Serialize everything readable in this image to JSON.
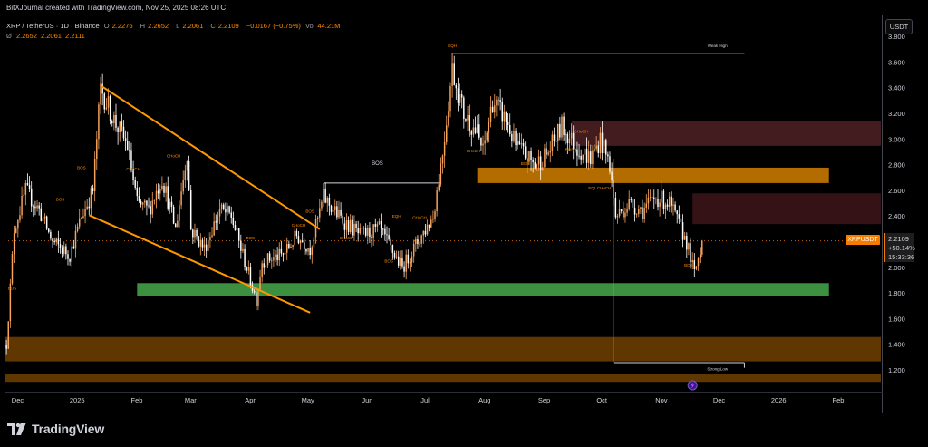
{
  "header": {
    "credit": "BitXJournal created with TradingView.com, Nov 25, 2025 08:26 UTC",
    "symbol": "XRP / TetherUS · 1D · Binance",
    "ohlc": [
      {
        "label": "O",
        "value": "2.2276"
      },
      {
        "label": "H",
        "value": "2.2652"
      },
      {
        "label": "L",
        "value": "2.2061"
      },
      {
        "label": "C",
        "value": "2.2109"
      }
    ],
    "change": "−0.0167 (−0.75%)",
    "volume_label": "Vol",
    "volume": "44.21M",
    "indicator_label": "Ø",
    "indicator_values": [
      "2.2652",
      "2.2061",
      "2.2111"
    ]
  },
  "currency_button": "USDT",
  "price_badge": {
    "ticker": "XRPUSDT",
    "price": "2.2109",
    "pct": "+50.14%",
    "countdown": "15:33:36"
  },
  "colors": {
    "up": "#f7a35c",
    "down": "#ffffff",
    "accent": "#ff8c00",
    "green_zone": "#43a047",
    "orange_zone": "#c77800",
    "brown_zone": "#6a3d00",
    "maroon_zone": "#4a1f24"
  },
  "footer": {
    "brand": "TradingView",
    "logo_icon": "tradingview-logo-icon"
  },
  "chart_data": {
    "type": "candlestick",
    "title": "XRP / TetherUS · 1D · Binance",
    "price_scale": {
      "min": 1.1,
      "max": 3.8,
      "ticks": [
        "1.200",
        "1.400",
        "1.600",
        "1.800",
        "2.000",
        "2.200",
        "2.400",
        "2.600",
        "2.800",
        "3.000",
        "3.200",
        "3.400",
        "3.600",
        "3.800"
      ]
    },
    "time_axis": [
      "Dec",
      "2025",
      "Feb",
      "Mar",
      "Apr",
      "May",
      "Jun",
      "Jul",
      "Aug",
      "Sep",
      "Oct",
      "Nov",
      "Dec",
      "2026",
      "Feb"
    ],
    "x_range": [
      "2024-11-27",
      "2026-02-26"
    ],
    "price_path": [
      [
        "2024-11-28",
        1.4
      ],
      [
        "2024-12-02",
        2.3
      ],
      [
        "2024-12-08",
        2.6
      ],
      [
        "2024-12-15",
        2.45
      ],
      [
        "2024-12-22",
        2.2
      ],
      [
        "2024-12-31",
        2.1
      ],
      [
        "2025-01-06",
        2.4
      ],
      [
        "2025-01-12",
        2.6
      ],
      [
        "2025-01-16",
        3.4
      ],
      [
        "2025-01-23",
        3.15
      ],
      [
        "2025-01-30",
        2.95
      ],
      [
        "2025-02-04",
        2.5
      ],
      [
        "2025-02-10",
        2.45
      ],
      [
        "2025-02-17",
        2.7
      ],
      [
        "2025-02-24",
        2.3
      ],
      [
        "2025-03-02",
        2.9
      ],
      [
        "2025-03-04",
        2.3
      ],
      [
        "2025-03-11",
        2.15
      ],
      [
        "2025-03-19",
        2.45
      ],
      [
        "2025-03-25",
        2.4
      ],
      [
        "2025-03-31",
        2.1
      ],
      [
        "2025-04-07",
        1.75
      ],
      [
        "2025-04-10",
        2.05
      ],
      [
        "2025-04-21",
        2.1
      ],
      [
        "2025-04-28",
        2.25
      ],
      [
        "2025-05-05",
        2.15
      ],
      [
        "2025-05-12",
        2.55
      ],
      [
        "2025-05-20",
        2.4
      ],
      [
        "2025-05-31",
        2.25
      ],
      [
        "2025-06-10",
        2.3
      ],
      [
        "2025-06-22",
        2.0
      ],
      [
        "2025-06-30",
        2.2
      ],
      [
        "2025-07-08",
        2.4
      ],
      [
        "2025-07-13",
        2.9
      ],
      [
        "2025-07-18",
        3.55
      ],
      [
        "2025-07-24",
        3.2
      ],
      [
        "2025-07-31",
        3.05
      ],
      [
        "2025-08-03",
        2.9
      ],
      [
        "2025-08-08",
        3.3
      ],
      [
        "2025-08-15",
        3.15
      ],
      [
        "2025-08-20",
        2.95
      ],
      [
        "2025-08-30",
        2.8
      ],
      [
        "2025-09-06",
        2.9
      ],
      [
        "2025-09-13",
        3.1
      ],
      [
        "2025-09-20",
        2.95
      ],
      [
        "2025-09-28",
        2.85
      ],
      [
        "2025-10-03",
        3.0
      ],
      [
        "2025-10-08",
        2.8
      ],
      [
        "2025-10-11",
        2.4
      ],
      [
        "2025-10-18",
        2.5
      ],
      [
        "2025-10-25",
        2.45
      ],
      [
        "2025-11-01",
        2.55
      ],
      [
        "2025-11-08",
        2.5
      ],
      [
        "2025-11-11",
        2.4
      ],
      [
        "2025-11-17",
        2.2
      ],
      [
        "2025-11-21",
        1.95
      ],
      [
        "2025-11-25",
        2.21
      ]
    ],
    "zones": [
      {
        "name": "demand-zone-green",
        "from": "2025-02-04",
        "to": "2026-01-30",
        "low": 1.78,
        "high": 1.88,
        "color": "#43a047"
      },
      {
        "name": "supply-zone-orange",
        "from": "2025-07-31",
        "to": "2026-01-30",
        "low": 2.66,
        "high": 2.78,
        "color": "#c77800"
      },
      {
        "name": "maroon-zone-upper",
        "from": "2025-09-18",
        "to": "2026-02-26",
        "low": 2.95,
        "high": 3.14,
        "color": "#4a1f24"
      },
      {
        "name": "maroon-zone-lower",
        "from": "2025-11-20",
        "to": "2026-02-26",
        "low": 2.34,
        "high": 2.58,
        "color": "#3a1418"
      },
      {
        "name": "orange-zone-bottom",
        "from": "2024-11-27",
        "to": "2026-02-26",
        "low": 1.27,
        "high": 1.46,
        "color": "#6a3d00"
      },
      {
        "name": "orange-zone-lowest",
        "from": "2024-11-27",
        "to": "2026-02-26",
        "low": 1.11,
        "high": 1.17,
        "color": "#6a3d00"
      }
    ],
    "trendlines": [
      {
        "name": "upper-trendline",
        "from": [
          "2025-01-16",
          3.42
        ],
        "to": [
          "2025-05-10",
          2.3
        ],
        "color": "#ff9800"
      },
      {
        "name": "lower-trendline",
        "from": [
          "2025-01-10",
          2.41
        ],
        "to": [
          "2025-05-05",
          1.65
        ],
        "color": "#ff9800"
      }
    ],
    "levels": [
      {
        "name": "weak-high-line",
        "from": "2025-07-18",
        "to": "2025-12-17",
        "price": 3.67,
        "color": "#e05050",
        "label": "Weak High"
      },
      {
        "name": "strong-low-line",
        "from": "2025-10-10",
        "to": "2025-12-17",
        "price": 1.26,
        "color": "#d1d4dc",
        "label": "Strong Low"
      },
      {
        "name": "bos-line",
        "from": "2025-05-12",
        "to": "2025-07-12",
        "price": 2.66,
        "color": "#d1d4dc",
        "label": "BOS"
      },
      {
        "name": "current-price-line",
        "from": "2024-11-27",
        "to": "2026-02-26",
        "price": 2.21,
        "color": "#f57c00",
        "label": ""
      }
    ],
    "annotations": [
      {
        "text": "BOS",
        "date": "2024-12-01",
        "price": 1.83
      },
      {
        "text": "BOS",
        "date": "2024-12-26",
        "price": 2.52
      },
      {
        "text": "BOS",
        "date": "2025-01-06",
        "price": 2.77
      },
      {
        "text": "CHoCH",
        "date": "2025-02-02",
        "price": 2.76
      },
      {
        "text": "CHoCH",
        "date": "2025-02-23",
        "price": 2.86
      },
      {
        "text": "BOS",
        "date": "2025-04-04",
        "price": 2.22
      },
      {
        "text": "CHoCH",
        "date": "2025-04-29",
        "price": 2.32
      },
      {
        "text": "BOS",
        "date": "2025-05-05",
        "price": 2.43
      },
      {
        "text": "CHoCH",
        "date": "2025-05-24",
        "price": 2.22
      },
      {
        "text": "EQH",
        "date": "2025-06-19",
        "price": 2.39
      },
      {
        "text": "BOS",
        "date": "2025-06-15",
        "price": 2.04
      },
      {
        "text": "CHoCH",
        "date": "2025-07-01",
        "price": 2.38
      },
      {
        "text": "EQH",
        "date": "2025-07-18",
        "price": 3.72
      },
      {
        "text": "CHoCH",
        "date": "2025-07-29",
        "price": 2.9
      },
      {
        "text": "BOS",
        "date": "2025-08-25",
        "price": 2.8
      },
      {
        "text": "CHoCH",
        "date": "2025-09-23",
        "price": 3.05
      },
      {
        "text": "BOS",
        "date": "2025-09-17",
        "price": 2.91
      },
      {
        "text": "EQL",
        "date": "2025-09-29",
        "price": 2.61
      },
      {
        "text": "CHoCH",
        "date": "2025-10-05",
        "price": 2.61
      },
      {
        "text": "BOS",
        "date": "2025-11-18",
        "price": 2.01
      },
      {
        "text": "Weak High",
        "date": "2025-12-03",
        "price": 3.72
      },
      {
        "text": "Strong Low",
        "date": "2025-12-03",
        "price": 1.2
      }
    ],
    "annotation_color": "#ff8c00",
    "candle_colors": {
      "up": "#f7a35c",
      "down": "#ffffff"
    },
    "grid": false,
    "event_marker": {
      "date": "2025-11-20",
      "icon": "lightning-event-icon"
    }
  }
}
